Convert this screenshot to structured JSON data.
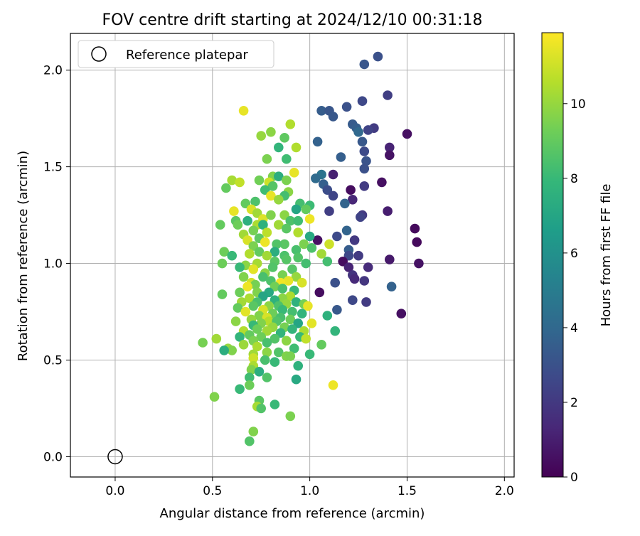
{
  "chart_data": {
    "type": "scatter",
    "title": "FOV centre drift starting at 2024/12/10 00:31:18",
    "xlabel": "Angular distance from reference (arcmin)",
    "ylabel": "Rotation from reference (arcmin)",
    "xlim": [
      -0.23,
      2.05
    ],
    "ylim": [
      -0.105,
      2.19
    ],
    "xticks": [
      0.0,
      0.5,
      1.0,
      1.5,
      2.0
    ],
    "xtick_labels": [
      "0.0",
      "0.5",
      "1.0",
      "1.5",
      "2.0"
    ],
    "yticks": [
      0.0,
      0.5,
      1.0,
      1.5,
      2.0
    ],
    "ytick_labels": [
      "0.0",
      "0.5",
      "1.0",
      "1.5",
      "2.0"
    ],
    "grid": true,
    "legend_position": "top-left",
    "reference": {
      "name": "Reference platepar",
      "x": 0.0,
      "y": 0.0,
      "color": "#000000"
    },
    "colorbar": {
      "label": "Hours from first FF file",
      "range": [
        0,
        11.9
      ],
      "ticks": [
        0,
        2,
        4,
        6,
        8,
        10
      ],
      "tick_labels": [
        "0",
        "2",
        "4",
        "6",
        "8",
        "10"
      ],
      "colormap": [
        "#440154",
        "#482878",
        "#3e4989",
        "#31688e",
        "#26828e",
        "#1f9e89",
        "#35b779",
        "#6ece58",
        "#b5de2b",
        "#fde725"
      ]
    },
    "points": [
      [
        1.35,
        2.07,
        3.0
      ],
      [
        1.28,
        2.03,
        3.2
      ],
      [
        1.4,
        1.87,
        2.2
      ],
      [
        1.27,
        1.84,
        2.6
      ],
      [
        1.06,
        1.79,
        3.5
      ],
      [
        1.1,
        1.79,
        3.2
      ],
      [
        1.19,
        1.81,
        3.0
      ],
      [
        1.12,
        1.76,
        3.3
      ],
      [
        1.22,
        1.72,
        3.4
      ],
      [
        1.24,
        1.7,
        3.6
      ],
      [
        1.33,
        1.7,
        2.1
      ],
      [
        1.3,
        1.69,
        2.4
      ],
      [
        1.25,
        1.68,
        4.0
      ],
      [
        1.5,
        1.67,
        0.5
      ],
      [
        1.27,
        1.63,
        3.3
      ],
      [
        1.41,
        1.6,
        1.2
      ],
      [
        1.41,
        1.56,
        0.6
      ],
      [
        1.16,
        1.55,
        3.6
      ],
      [
        1.28,
        1.58,
        2.7
      ],
      [
        1.29,
        1.53,
        3.1
      ],
      [
        1.28,
        1.49,
        3.0
      ],
      [
        1.04,
        1.63,
        3.7
      ],
      [
        1.06,
        1.46,
        4.6
      ],
      [
        1.03,
        1.44,
        4.1
      ],
      [
        1.07,
        1.41,
        3.6
      ],
      [
        1.09,
        1.38,
        2.8
      ],
      [
        1.12,
        1.46,
        1.1
      ],
      [
        1.21,
        1.38,
        0.4
      ],
      [
        1.28,
        1.4,
        2.1
      ],
      [
        1.37,
        1.42,
        0.5
      ],
      [
        1.12,
        1.35,
        2.5
      ],
      [
        1.22,
        1.33,
        1.3
      ],
      [
        1.18,
        1.31,
        3.8
      ],
      [
        1.1,
        1.27,
        2.2
      ],
      [
        1.4,
        1.27,
        1.0
      ],
      [
        1.27,
        1.25,
        2.0
      ],
      [
        1.26,
        1.24,
        2.4
      ],
      [
        1.54,
        1.18,
        0.3
      ],
      [
        1.55,
        1.11,
        0.3
      ],
      [
        1.19,
        1.17,
        3.8
      ],
      [
        1.14,
        1.14,
        2.7
      ],
      [
        1.04,
        1.12,
        0.5
      ],
      [
        1.23,
        1.12,
        2.0
      ],
      [
        1.2,
        1.07,
        3.5
      ],
      [
        1.2,
        1.04,
        2.6
      ],
      [
        1.25,
        1.04,
        2.1
      ],
      [
        1.17,
        1.01,
        0.4
      ],
      [
        1.2,
        0.98,
        1.2
      ],
      [
        1.3,
        0.98,
        1.5
      ],
      [
        1.41,
        1.02,
        0.8
      ],
      [
        1.56,
        1.0,
        0.6
      ],
      [
        1.22,
        0.94,
        1.8
      ],
      [
        1.23,
        0.92,
        1.4
      ],
      [
        1.28,
        0.91,
        1.9
      ],
      [
        1.13,
        0.9,
        3.0
      ],
      [
        1.42,
        0.88,
        3.7
      ],
      [
        1.05,
        0.85,
        0.4
      ],
      [
        1.22,
        0.81,
        2.6
      ],
      [
        1.29,
        0.8,
        2.1
      ],
      [
        1.47,
        0.74,
        0.5
      ],
      [
        1.14,
        0.76,
        3.3
      ],
      [
        0.66,
        1.79,
        11.5
      ],
      [
        0.9,
        1.72,
        10.5
      ],
      [
        0.8,
        1.68,
        9.8
      ],
      [
        0.75,
        1.66,
        10.0
      ],
      [
        0.87,
        1.65,
        8.9
      ],
      [
        0.84,
        1.6,
        7.8
      ],
      [
        0.93,
        1.6,
        10.5
      ],
      [
        0.78,
        1.54,
        9.5
      ],
      [
        0.88,
        1.54,
        8.2
      ],
      [
        0.92,
        1.47,
        11.5
      ],
      [
        0.81,
        1.45,
        9.6
      ],
      [
        0.84,
        1.45,
        7.4
      ],
      [
        0.88,
        1.43,
        9.5
      ],
      [
        0.74,
        1.43,
        9.3
      ],
      [
        0.6,
        1.43,
        10.3
      ],
      [
        0.64,
        1.42,
        10.8
      ],
      [
        0.79,
        1.42,
        11.0
      ],
      [
        0.81,
        1.4,
        8.7
      ],
      [
        0.57,
        1.39,
        9.0
      ],
      [
        0.77,
        1.38,
        8.2
      ],
      [
        0.89,
        1.37,
        9.8
      ],
      [
        0.87,
        1.35,
        8.3
      ],
      [
        0.8,
        1.35,
        11.5
      ],
      [
        0.84,
        1.33,
        10.0
      ],
      [
        0.72,
        1.32,
        8.5
      ],
      [
        0.67,
        1.31,
        9.0
      ],
      [
        0.95,
        1.31,
        8.3
      ],
      [
        1.0,
        1.3,
        8.1
      ],
      [
        0.93,
        1.28,
        7.0
      ],
      [
        0.98,
        1.28,
        9.0
      ],
      [
        0.7,
        1.28,
        11.2
      ],
      [
        0.61,
        1.27,
        11.5
      ],
      [
        0.73,
        1.26,
        10.2
      ],
      [
        0.76,
        1.23,
        11.3
      ],
      [
        0.8,
        1.25,
        9.6
      ],
      [
        0.87,
        1.25,
        9.8
      ],
      [
        0.9,
        1.22,
        8.5
      ],
      [
        0.94,
        1.22,
        8.2
      ],
      [
        1.0,
        1.23,
        11.6
      ],
      [
        0.62,
        1.22,
        8.8
      ],
      [
        0.68,
        1.22,
        7.5
      ],
      [
        0.54,
        1.2,
        9.0
      ],
      [
        0.63,
        1.2,
        9.2
      ],
      [
        0.73,
        1.2,
        10.4
      ],
      [
        0.76,
        1.2,
        7.6
      ],
      [
        0.84,
        1.2,
        10.2
      ],
      [
        0.88,
        1.18,
        8.8
      ],
      [
        0.71,
        1.17,
        9.4
      ],
      [
        0.78,
        1.16,
        10.7
      ],
      [
        0.66,
        1.15,
        10.2
      ],
      [
        0.94,
        1.16,
        10.5
      ],
      [
        1.0,
        1.14,
        7.2
      ],
      [
        0.74,
        1.13,
        8.9
      ],
      [
        0.68,
        1.12,
        11.2
      ],
      [
        0.77,
        1.11,
        11.6
      ],
      [
        0.87,
        1.1,
        8.8
      ],
      [
        0.83,
        1.1,
        8.6
      ],
      [
        0.97,
        1.1,
        9.5
      ],
      [
        1.1,
        1.1,
        11.0
      ],
      [
        0.71,
        1.09,
        9.5
      ],
      [
        1.01,
        1.08,
        8.5
      ],
      [
        0.93,
        1.07,
        8.4
      ],
      [
        0.74,
        1.06,
        9.0
      ],
      [
        0.56,
        1.06,
        9.2
      ],
      [
        0.82,
        1.06,
        7.4
      ],
      [
        0.69,
        1.05,
        10.5
      ],
      [
        0.78,
        1.04,
        10.2
      ],
      [
        0.87,
        1.04,
        8.5
      ],
      [
        1.06,
        1.05,
        10.2
      ],
      [
        0.6,
        1.04,
        8.0
      ],
      [
        0.94,
        1.03,
        8.6
      ],
      [
        0.88,
        1.02,
        8.7
      ],
      [
        0.82,
        1.01,
        8.8
      ],
      [
        0.73,
        1.0,
        10.3
      ],
      [
        0.55,
        1.0,
        9.2
      ],
      [
        0.98,
        1.0,
        8.3
      ],
      [
        1.09,
        1.01,
        8.3
      ],
      [
        0.67,
        0.99,
        9.8
      ],
      [
        0.64,
        0.98,
        8.0
      ],
      [
        0.71,
        0.97,
        11.4
      ],
      [
        0.81,
        0.98,
        8.6
      ],
      [
        0.91,
        0.97,
        8.7
      ],
      [
        0.77,
        0.95,
        9.8
      ],
      [
        0.86,
        0.94,
        9.4
      ],
      [
        0.76,
        0.93,
        8.4
      ],
      [
        0.93,
        0.93,
        10.0
      ],
      [
        0.66,
        0.93,
        9.6
      ],
      [
        0.89,
        0.91,
        11.5
      ],
      [
        0.85,
        0.9,
        11.7
      ],
      [
        0.8,
        0.91,
        8.5
      ],
      [
        0.96,
        0.9,
        11.2
      ],
      [
        0.7,
        0.9,
        11.0
      ],
      [
        0.72,
        0.89,
        9.4
      ],
      [
        0.82,
        0.88,
        9.3
      ],
      [
        0.68,
        0.88,
        11.6
      ],
      [
        0.86,
        0.87,
        8.4
      ],
      [
        0.92,
        0.86,
        8.0
      ],
      [
        0.64,
        0.85,
        9.2
      ],
      [
        0.73,
        0.85,
        9.6
      ],
      [
        0.79,
        0.85,
        7.2
      ],
      [
        0.55,
        0.84,
        9.0
      ],
      [
        0.9,
        0.83,
        10.4
      ],
      [
        0.76,
        0.83,
        7.0
      ],
      [
        0.86,
        0.82,
        9.8
      ],
      [
        0.69,
        0.82,
        10.4
      ],
      [
        0.82,
        0.81,
        7.6
      ],
      [
        0.65,
        0.8,
        10.2
      ],
      [
        0.93,
        0.8,
        7.6
      ],
      [
        0.73,
        0.8,
        8.4
      ],
      [
        0.97,
        0.79,
        9.4
      ],
      [
        0.88,
        0.79,
        10.0
      ],
      [
        0.84,
        0.78,
        8.5
      ],
      [
        0.79,
        0.78,
        9.8
      ],
      [
        0.71,
        0.78,
        8.8
      ],
      [
        0.99,
        0.78,
        11.5
      ],
      [
        0.63,
        0.77,
        9.0
      ],
      [
        0.76,
        0.76,
        11.2
      ],
      [
        0.86,
        0.76,
        8.0
      ],
      [
        0.91,
        0.75,
        8.3
      ],
      [
        0.67,
        0.75,
        11.4
      ],
      [
        0.81,
        0.74,
        9.2
      ],
      [
        0.96,
        0.74,
        7.8
      ],
      [
        0.74,
        0.73,
        9.6
      ],
      [
        1.09,
        0.73,
        7.6
      ],
      [
        0.78,
        0.72,
        11.2
      ],
      [
        0.85,
        0.72,
        8.4
      ],
      [
        0.9,
        0.71,
        9.2
      ],
      [
        0.7,
        0.71,
        10.0
      ],
      [
        0.79,
        0.7,
        10.6
      ],
      [
        0.83,
        0.7,
        8.6
      ],
      [
        0.62,
        0.7,
        9.8
      ],
      [
        0.75,
        0.69,
        9.6
      ],
      [
        0.94,
        0.69,
        7.0
      ],
      [
        1.01,
        0.69,
        11.4
      ],
      [
        0.71,
        0.68,
        8.0
      ],
      [
        0.87,
        0.67,
        9.4
      ],
      [
        0.81,
        0.67,
        10.0
      ],
      [
        0.73,
        0.66,
        9.2
      ],
      [
        0.91,
        0.66,
        7.8
      ],
      [
        0.97,
        0.65,
        10.4
      ],
      [
        1.13,
        0.65,
        7.8
      ],
      [
        0.66,
        0.65,
        10.5
      ],
      [
        0.78,
        0.65,
        10.2
      ],
      [
        0.85,
        0.64,
        7.8
      ],
      [
        0.69,
        0.63,
        9.0
      ],
      [
        0.75,
        0.62,
        9.2
      ],
      [
        0.95,
        0.62,
        8.0
      ],
      [
        0.64,
        0.62,
        7.8
      ],
      [
        0.82,
        0.61,
        8.6
      ],
      [
        0.52,
        0.61,
        10.2
      ],
      [
        0.98,
        0.61,
        10.8
      ],
      [
        0.88,
        0.6,
        9.8
      ],
      [
        0.71,
        0.6,
        9.5
      ],
      [
        0.78,
        0.59,
        8.4
      ],
      [
        1.06,
        0.58,
        9.0
      ],
      [
        0.45,
        0.59,
        9.4
      ],
      [
        0.66,
        0.58,
        10.1
      ],
      [
        0.73,
        0.57,
        10.4
      ],
      [
        0.92,
        0.56,
        8.2
      ],
      [
        0.58,
        0.56,
        10.0
      ],
      [
        0.6,
        0.55,
        9.6
      ],
      [
        0.56,
        0.55,
        7.4
      ],
      [
        0.78,
        0.54,
        9.8
      ],
      [
        0.84,
        0.54,
        8.6
      ],
      [
        0.71,
        0.53,
        10.2
      ],
      [
        0.88,
        0.52,
        9.6
      ],
      [
        0.9,
        0.52,
        9.5
      ],
      [
        1.0,
        0.53,
        8.0
      ],
      [
        0.71,
        0.51,
        11.0
      ],
      [
        0.77,
        0.5,
        8.4
      ],
      [
        0.82,
        0.49,
        8.0
      ],
      [
        0.94,
        0.47,
        7.6
      ],
      [
        0.71,
        0.47,
        10.4
      ],
      [
        0.7,
        0.45,
        9.6
      ],
      [
        0.74,
        0.44,
        7.4
      ],
      [
        0.78,
        0.41,
        8.6
      ],
      [
        0.69,
        0.41,
        8.2
      ],
      [
        0.93,
        0.4,
        7.2
      ],
      [
        1.12,
        0.37,
        11.6
      ],
      [
        0.69,
        0.37,
        9.2
      ],
      [
        0.64,
        0.35,
        8.0
      ],
      [
        0.51,
        0.31,
        9.6
      ],
      [
        0.74,
        0.29,
        8.8
      ],
      [
        0.82,
        0.27,
        8.0
      ],
      [
        0.73,
        0.26,
        10.3
      ],
      [
        0.75,
        0.25,
        8.6
      ],
      [
        0.9,
        0.21,
        9.5
      ],
      [
        0.71,
        0.13,
        9.6
      ],
      [
        0.69,
        0.08,
        8.6
      ]
    ]
  }
}
